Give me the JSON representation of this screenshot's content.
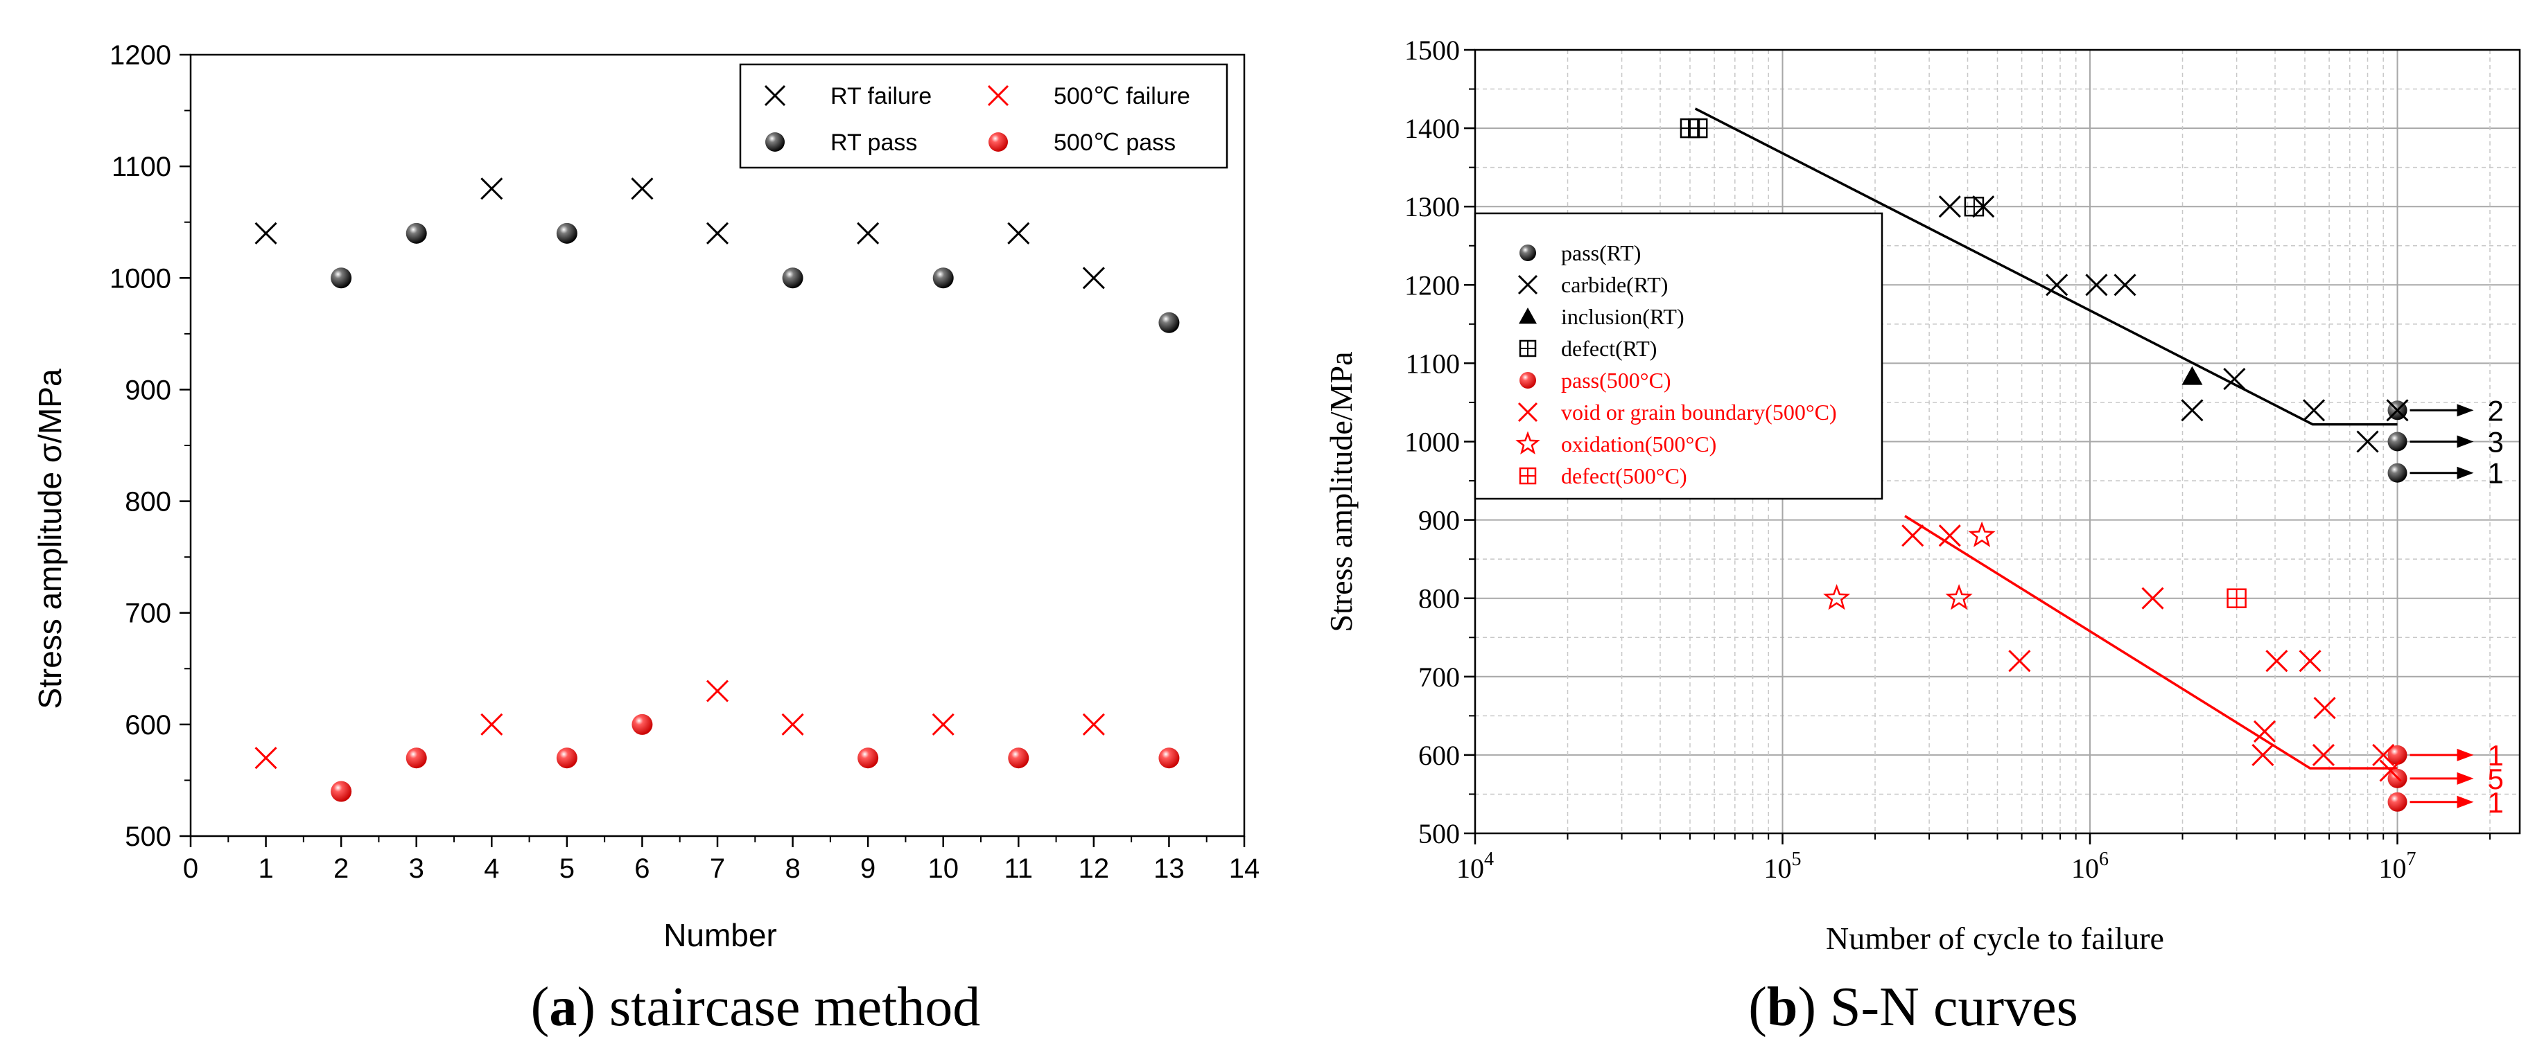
{
  "panels": {
    "a": {
      "caption_letter": "a",
      "caption_rest": " staircase method"
    },
    "b": {
      "caption_letter": "b",
      "caption_rest": " S-N curves"
    }
  },
  "colors": {
    "rt": "#000000",
    "hot": "#ff0000",
    "grid": "#b0b0b0"
  },
  "chart_data": [
    {
      "type": "scatter",
      "xlabel": "Number",
      "ylabel": "Stress amplitude σ/MPa",
      "xlim": [
        0,
        14
      ],
      "ylim": [
        500,
        1200
      ],
      "xticks": [
        0,
        1,
        2,
        3,
        4,
        5,
        6,
        7,
        8,
        9,
        10,
        11,
        12,
        13,
        14
      ],
      "yticks": [
        500,
        600,
        700,
        800,
        900,
        1000,
        1100,
        1200
      ],
      "grid": false,
      "legend_position": "top-right",
      "series": [
        {
          "name": "RT failure",
          "marker": "x",
          "color": "#000000",
          "points": [
            [
              1,
              1040
            ],
            [
              4,
              1080
            ],
            [
              6,
              1080
            ],
            [
              7,
              1040
            ],
            [
              9,
              1040
            ],
            [
              11,
              1040
            ],
            [
              12,
              1000
            ]
          ]
        },
        {
          "name": "RT pass",
          "marker": "sphere",
          "color": "#000000",
          "points": [
            [
              2,
              1000
            ],
            [
              3,
              1040
            ],
            [
              5,
              1040
            ],
            [
              8,
              1000
            ],
            [
              10,
              1000
            ],
            [
              13,
              960
            ]
          ]
        },
        {
          "name": "500℃ failure",
          "marker": "x",
          "color": "#ff0000",
          "points": [
            [
              1,
              570
            ],
            [
              4,
              600
            ],
            [
              7,
              630
            ],
            [
              8,
              600
            ],
            [
              10,
              600
            ],
            [
              12,
              600
            ]
          ]
        },
        {
          "name": "500℃ pass",
          "marker": "sphere",
          "color": "#ff0000",
          "points": [
            [
              2,
              540
            ],
            [
              3,
              570
            ],
            [
              5,
              570
            ],
            [
              6,
              600
            ],
            [
              9,
              570
            ],
            [
              11,
              570
            ],
            [
              13,
              570
            ]
          ]
        }
      ]
    },
    {
      "type": "scatter",
      "xlabel": "Number of cycle to failure",
      "ylabel": "Stress amplitude/MPa",
      "xscale": "log",
      "xlim": [
        10000,
        25000000
      ],
      "ylim": [
        500,
        1500
      ],
      "xticks": [
        10000,
        100000,
        1000000,
        10000000
      ],
      "xtick_exponents": [
        "4",
        "5",
        "6",
        "7"
      ],
      "xtick_base": "10",
      "yticks": [
        500,
        600,
        700,
        800,
        900,
        1000,
        1100,
        1200,
        1300,
        1400,
        1500
      ],
      "grid": true,
      "legend_position": "center-left",
      "series": [
        {
          "name": "pass(RT)",
          "marker": "sphere",
          "color": "#000000",
          "points": [
            [
              10000000,
              1040
            ],
            [
              10000000,
              1000
            ],
            [
              10000000,
              960
            ]
          ]
        },
        {
          "name": "carbide(RT)",
          "marker": "x",
          "color": "#000000",
          "points": [
            [
              350000,
              1300
            ],
            [
              450000,
              1300
            ],
            [
              780000,
              1200
            ],
            [
              1050000,
              1200
            ],
            [
              1300000,
              1200
            ],
            [
              2150000,
              1040
            ],
            [
              2950000,
              1080
            ],
            [
              5350000,
              1040
            ],
            [
              8000000,
              1000
            ],
            [
              10000000,
              1040
            ]
          ]
        },
        {
          "name": "inclusion(RT)",
          "marker": "triangle",
          "color": "#000000",
          "points": [
            [
              2150000,
              1083
            ]
          ]
        },
        {
          "name": "defect(RT)",
          "marker": "boxplus",
          "color": "#000000",
          "points": [
            [
              50000,
              1400
            ],
            [
              53000,
              1400
            ],
            [
              420000,
              1300
            ]
          ]
        },
        {
          "name": "pass(500°C)",
          "marker": "sphere",
          "color": "#ff0000",
          "points": [
            [
              10000000,
              600
            ],
            [
              10000000,
              570
            ],
            [
              10000000,
              540
            ]
          ]
        },
        {
          "name": "void or grain boundary(500°C)",
          "marker": "x",
          "color": "#ff0000",
          "points": [
            [
              265000,
              880
            ],
            [
              350000,
              880
            ],
            [
              590000,
              720
            ],
            [
              1600000,
              800
            ],
            [
              3650000,
              600
            ],
            [
              3700000,
              630
            ],
            [
              4050000,
              720
            ],
            [
              5200000,
              720
            ],
            [
              5750000,
              600
            ],
            [
              5800000,
              660
            ],
            [
              9000000,
              600
            ],
            [
              9500000,
              580
            ]
          ]
        },
        {
          "name": "oxidation(500°C)",
          "marker": "star",
          "color": "#ff0000",
          "points": [
            [
              150000,
              800
            ],
            [
              375000,
              800
            ],
            [
              445000,
              880
            ]
          ]
        },
        {
          "name": "defect(500°C)",
          "marker": "boxplus",
          "color": "#ff0000",
          "points": [
            [
              3000000,
              800
            ]
          ]
        }
      ],
      "fit_lines": [
        {
          "color": "#000000",
          "points": [
            [
              52000,
              1425
            ],
            [
              5300000,
              1022
            ],
            [
              10000000,
              1022
            ]
          ]
        },
        {
          "color": "#ff0000",
          "points": [
            [
              250000,
              905
            ],
            [
              5200000,
              583
            ],
            [
              10000000,
              583
            ]
          ]
        }
      ],
      "runout_labels": [
        {
          "y": 1040,
          "text": "2",
          "color": "#000000"
        },
        {
          "y": 1000,
          "text": "3",
          "color": "#000000"
        },
        {
          "y": 960,
          "text": "1",
          "color": "#000000"
        },
        {
          "y": 600,
          "text": "1",
          "color": "#ff0000"
        },
        {
          "y": 570,
          "text": "5",
          "color": "#ff0000"
        },
        {
          "y": 540,
          "text": "1",
          "color": "#ff0000"
        }
      ]
    }
  ]
}
